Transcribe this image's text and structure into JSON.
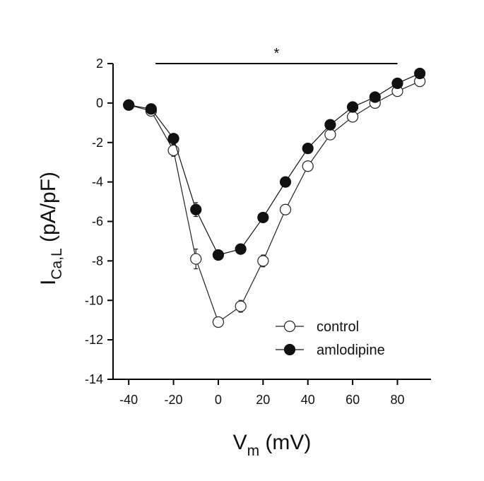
{
  "chart_data": {
    "type": "line",
    "x": [
      -40,
      -30,
      -20,
      -10,
      0,
      10,
      20,
      30,
      40,
      50,
      60,
      70,
      80,
      90
    ],
    "series": [
      {
        "name": "control",
        "values": [
          -0.1,
          -0.4,
          -2.4,
          -7.9,
          -11.1,
          -10.3,
          -8.0,
          -5.4,
          -3.2,
          -1.6,
          -0.7,
          0.0,
          0.6,
          1.1
        ],
        "errors": [
          0.05,
          0.1,
          0.3,
          0.5,
          0.25,
          0.3,
          0.3,
          0.2,
          0.15,
          0.1,
          0.1,
          0.1,
          0.1,
          0.1
        ],
        "marker": "open-circle",
        "color": "#222222"
      },
      {
        "name": "amlodipine",
        "values": [
          -0.1,
          -0.3,
          -1.8,
          -5.4,
          -7.7,
          -7.4,
          -5.8,
          -4.0,
          -2.3,
          -1.1,
          -0.2,
          0.3,
          1.0,
          1.5
        ],
        "errors": [
          0.05,
          0.1,
          0.2,
          0.35,
          0.25,
          0.2,
          0.15,
          0.1,
          0.1,
          0.1,
          0.1,
          0.1,
          0.1,
          0.1
        ],
        "marker": "filled-circle",
        "color": "#111111"
      }
    ],
    "xlabel": {
      "main": "V",
      "sub": "m",
      "rest": " (mV)"
    },
    "ylabel": {
      "main": "I",
      "sub": "Ca,L",
      "rest": " (pA/pF)"
    },
    "xlim": [
      -47,
      95
    ],
    "ylim": [
      -14,
      2
    ],
    "xticks": [
      -40,
      -20,
      0,
      20,
      40,
      60,
      80
    ],
    "yticks": [
      2,
      0,
      -2,
      -4,
      -6,
      -8,
      -10,
      -12,
      -14
    ],
    "significance": {
      "label": "*",
      "x_range": [
        -28,
        80
      ],
      "y": 2
    },
    "legend_position": "lower-right",
    "grid": false
  }
}
